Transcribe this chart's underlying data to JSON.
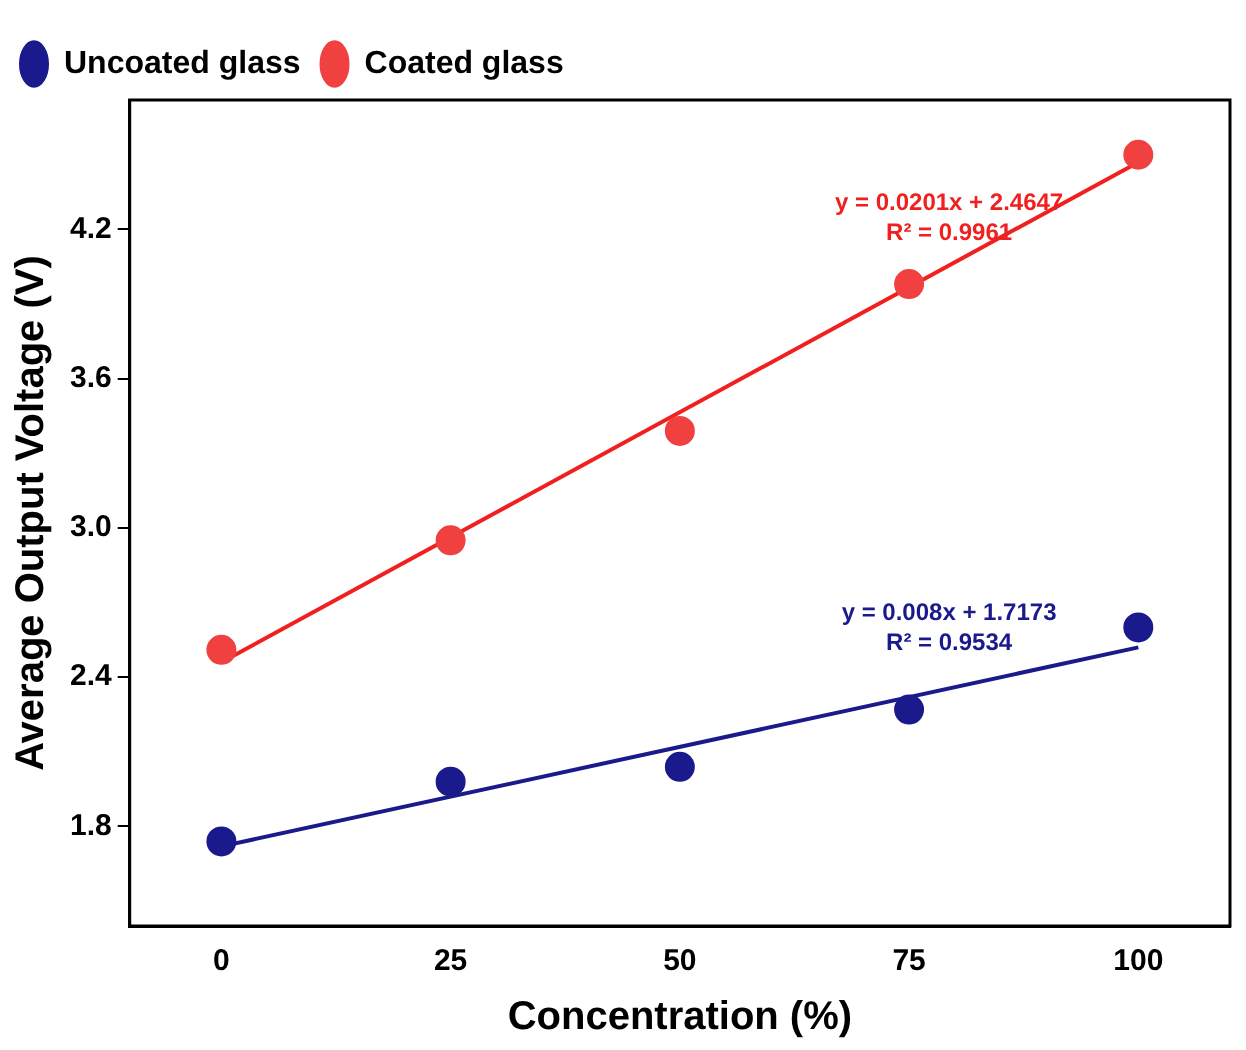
{
  "chart_data": {
    "type": "scatter",
    "xlabel": "Concentration (%)",
    "ylabel": "Average Output Voltage (V)",
    "xlim": [
      -10,
      110
    ],
    "xticks": [
      0,
      25,
      50,
      75,
      100
    ],
    "ylim": [
      1.4,
      4.72
    ],
    "yticks": [
      {
        "value": 1.8,
        "label": "1.8"
      },
      {
        "value": 2.4,
        "label": "2.4"
      },
      {
        "value": 3,
        "label": "3.0"
      },
      {
        "value": 3.6,
        "label": "3.6"
      },
      {
        "value": 4.2,
        "label": "4.2"
      }
    ],
    "grid": false,
    "legend": "top left",
    "series": [
      {
        "name": "Uncoated glass",
        "color": "#1a1a8c",
        "marker": "circle",
        "x": [
          0,
          25,
          50,
          75,
          100
        ],
        "values": [
          1.74,
          1.98,
          2.04,
          2.27,
          2.6
        ]
      },
      {
        "name": "Coated glass",
        "color": "#f04040",
        "marker": "circle",
        "x": [
          0,
          25,
          50,
          75,
          100
        ],
        "values": [
          2.51,
          2.95,
          3.39,
          3.98,
          4.5
        ]
      },
      {
        "type": "line",
        "color": "#1a1a8c",
        "marker": "none",
        "x": [
          0,
          100
        ],
        "values": [
          1.72,
          2.52
        ]
      },
      {
        "type": "line",
        "color": "#f02020",
        "marker": "none",
        "x": [
          0,
          100
        ],
        "values": [
          2.46,
          4.47
        ]
      }
    ],
    "annotations": [
      "y = 0.008x + 1.7173",
      "R² = 0.9534",
      "y = 0.0201x + 2.4647",
      "R² = 0.9961"
    ]
  }
}
